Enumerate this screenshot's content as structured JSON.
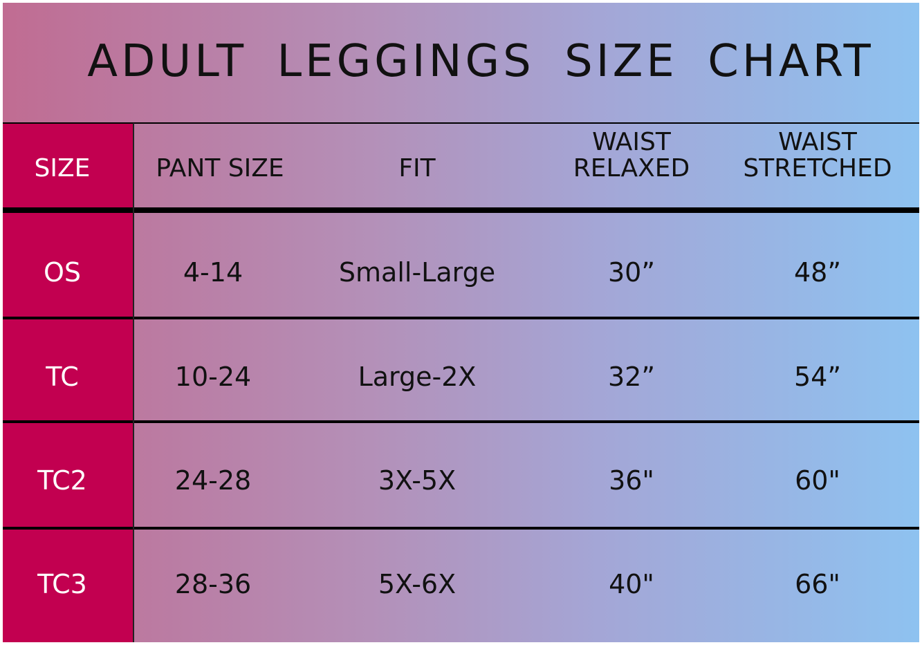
{
  "title": "ADULT LEGGINGS SIZE CHART",
  "colors": {
    "size_column": "#c20050",
    "gradient_left": "#c06c92",
    "gradient_right": "#8ec2f0",
    "lines": "#000000"
  },
  "headers": [
    "SIZE",
    "PANT SIZE",
    "FIT",
    "WAIST RELAXED",
    "WAIST STRETCHED"
  ],
  "header_lines": {
    "waist_relaxed": [
      "WAIST",
      "RELAXED"
    ],
    "waist_stretched": [
      "WAIST",
      "STRETCHED"
    ]
  },
  "rows": [
    [
      "OS",
      "4-14",
      "Small-Large",
      "30”",
      "48”"
    ],
    [
      "TC",
      "10-24",
      "Large-2X",
      "32”",
      "54”"
    ],
    [
      "TC2",
      "24-28",
      "3X-5X",
      "36\"",
      "60\""
    ],
    [
      "TC3",
      "28-36",
      "5X-6X",
      "40\"",
      "66\""
    ]
  ]
}
